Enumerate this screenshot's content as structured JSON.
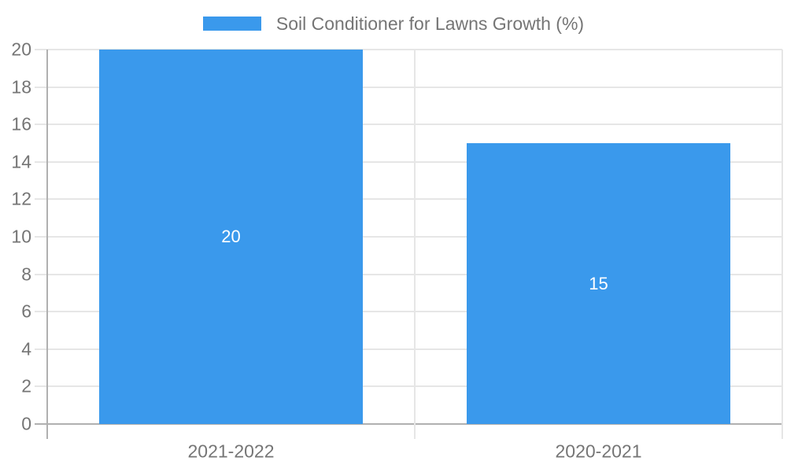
{
  "chart_data": {
    "type": "bar",
    "title": "Soil Conditioner for Lawns Growth (%)",
    "categories": [
      "2021-2022",
      "2020-2021"
    ],
    "values": [
      20,
      15
    ],
    "bar_labels": [
      "20",
      "15"
    ],
    "xlabel": "",
    "ylabel": "",
    "ylim": [
      0,
      20
    ],
    "yticks": [
      0,
      2,
      4,
      6,
      8,
      10,
      12,
      14,
      16,
      18,
      20
    ],
    "grid": true,
    "legend_position": "top-center",
    "colors": {
      "bar": "#3A99EC",
      "grid": "#E6E6E6",
      "axis": "#B0B0B0",
      "tick_text": "#757575",
      "title_text": "#757575",
      "bar_label_text": "#FFFFFF",
      "background": "#FFFFFF"
    }
  }
}
